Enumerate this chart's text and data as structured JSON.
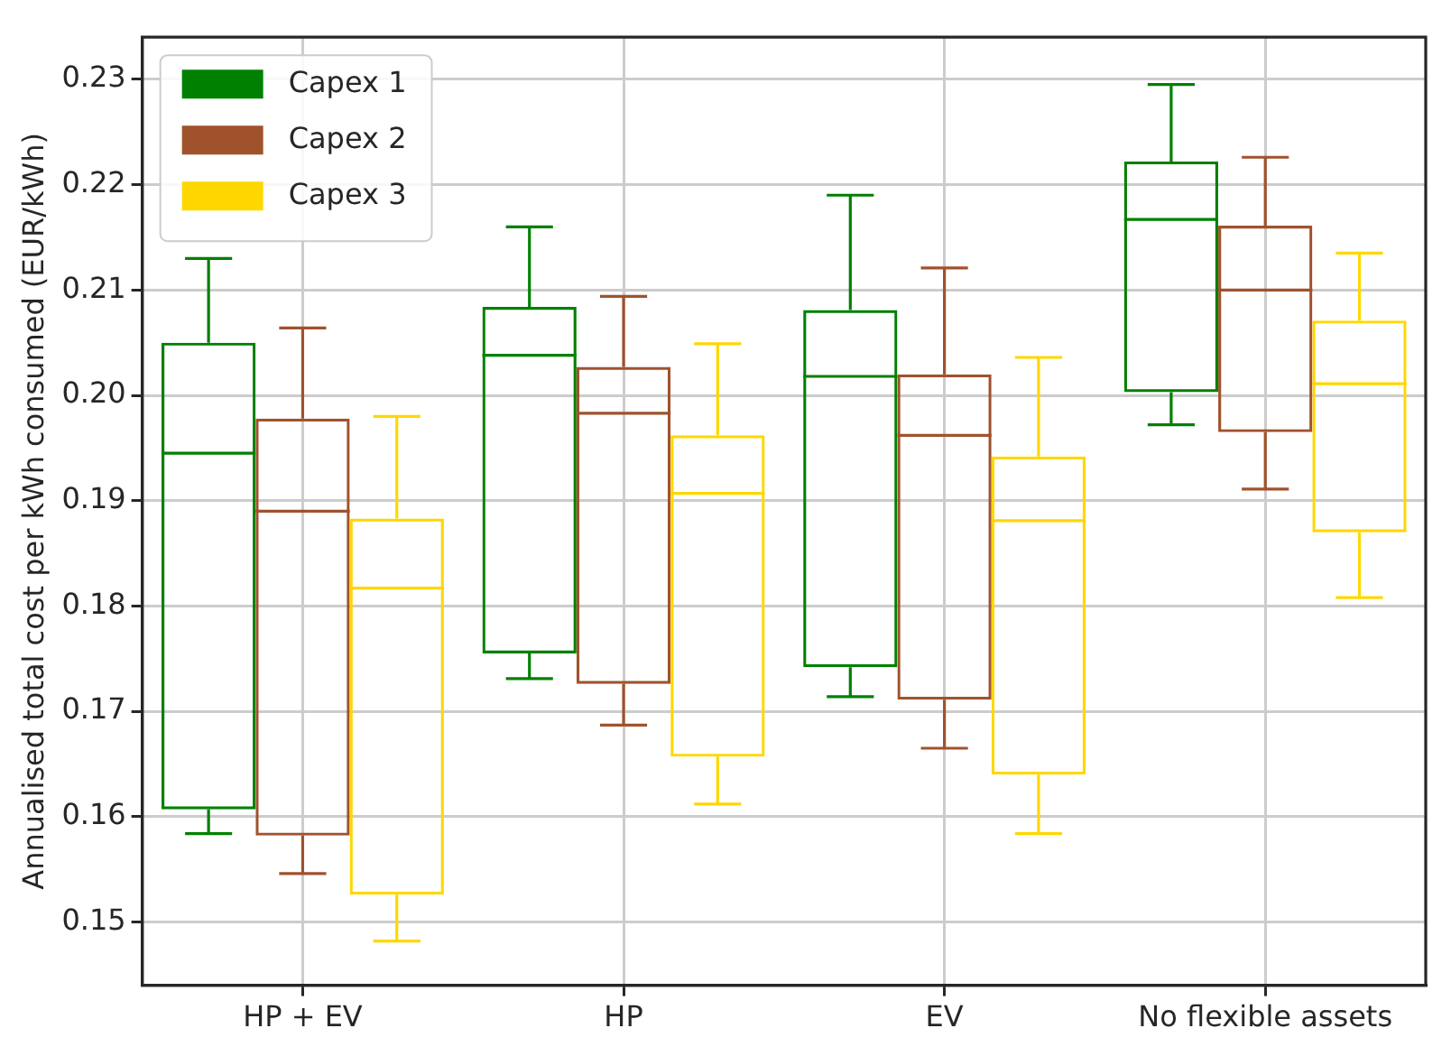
{
  "chart_data": {
    "type": "box",
    "ylabel": "Annualised total cost per kWh consumed (EUR/kWh)",
    "categories": [
      "HP + EV",
      "HP",
      "EV",
      "No flexible assets"
    ],
    "series": [
      {
        "name": "Capex 1",
        "color": "#008000",
        "boxes": [
          {
            "low": 0.1584,
            "q1": 0.1607,
            "median": 0.1945,
            "q3": 0.205,
            "high": 0.213
          },
          {
            "low": 0.1731,
            "q1": 0.1755,
            "median": 0.2038,
            "q3": 0.2084,
            "high": 0.216
          },
          {
            "low": 0.1714,
            "q1": 0.1742,
            "median": 0.2018,
            "q3": 0.2081,
            "high": 0.219
          },
          {
            "low": 0.1972,
            "q1": 0.2003,
            "median": 0.2167,
            "q3": 0.2222,
            "high": 0.2295
          }
        ]
      },
      {
        "name": "Capex 2",
        "color": "#a0522d",
        "boxes": [
          {
            "low": 0.1546,
            "q1": 0.1582,
            "median": 0.189,
            "q3": 0.1978,
            "high": 0.2064
          },
          {
            "low": 0.1687,
            "q1": 0.1726,
            "median": 0.1983,
            "q3": 0.2027,
            "high": 0.2094
          },
          {
            "low": 0.1665,
            "q1": 0.1711,
            "median": 0.1962,
            "q3": 0.202,
            "high": 0.2121
          },
          {
            "low": 0.1911,
            "q1": 0.1965,
            "median": 0.21,
            "q3": 0.2161,
            "high": 0.2226
          }
        ]
      },
      {
        "name": "Capex 3",
        "color": "#ffd700",
        "boxes": [
          {
            "low": 0.1482,
            "q1": 0.1526,
            "median": 0.1817,
            "q3": 0.1883,
            "high": 0.198
          },
          {
            "low": 0.1612,
            "q1": 0.1657,
            "median": 0.1907,
            "q3": 0.1962,
            "high": 0.2049
          },
          {
            "low": 0.1584,
            "q1": 0.164,
            "median": 0.1881,
            "q3": 0.1942,
            "high": 0.2036
          },
          {
            "low": 0.1808,
            "q1": 0.187,
            "median": 0.2011,
            "q3": 0.2071,
            "high": 0.2135
          }
        ]
      }
    ],
    "ylim": [
      0.144,
      0.234
    ],
    "yticks": [
      0.15,
      0.16,
      0.17,
      0.18,
      0.19,
      {
        "value": 0.2,
        "label": "0.20"
      },
      0.21,
      0.22,
      0.23
    ],
    "grid": true,
    "legend": "top left"
  }
}
